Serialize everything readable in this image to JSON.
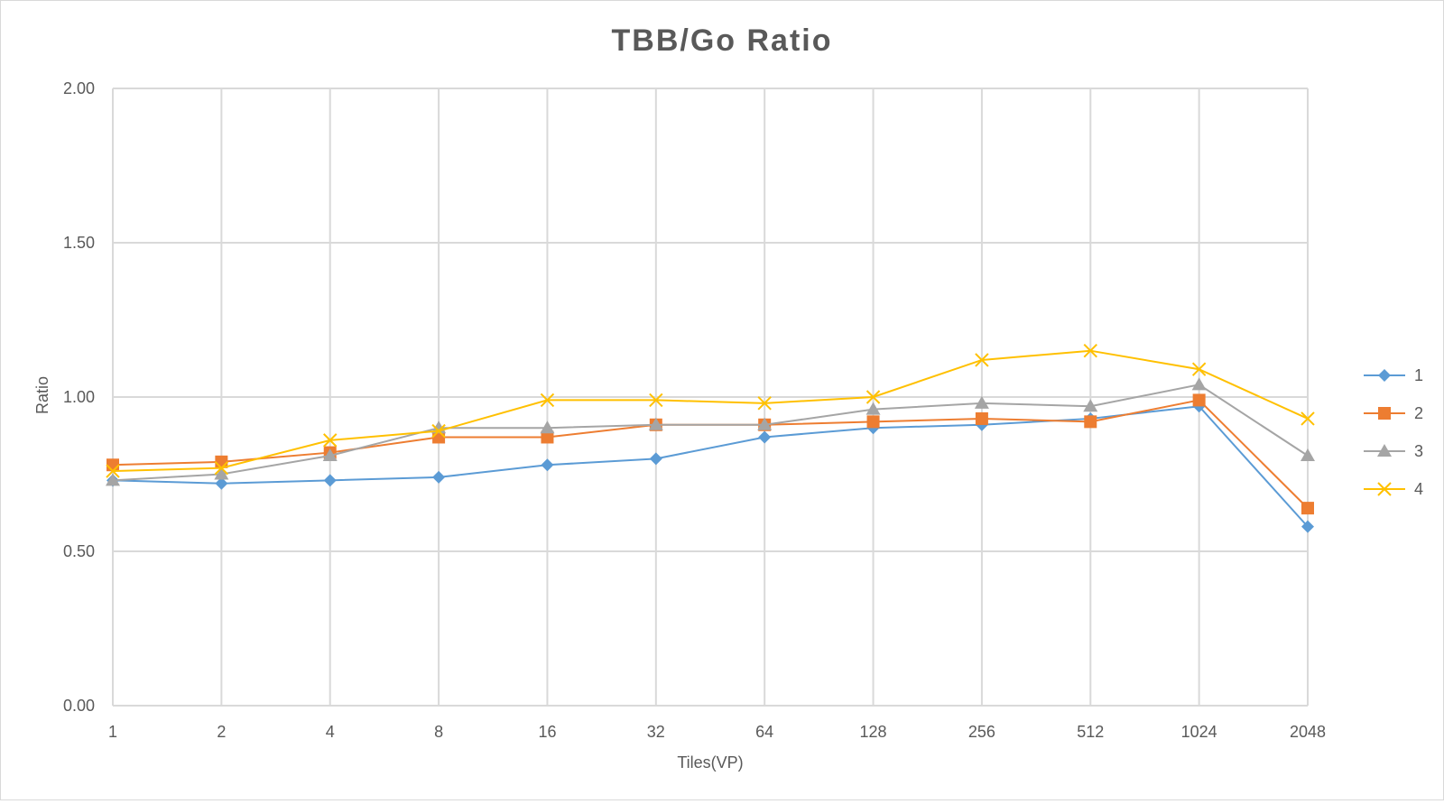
{
  "chart_data": {
    "type": "line",
    "title": "TBB/Go Ratio",
    "xlabel": "Tiles(VP)",
    "ylabel": "Ratio",
    "categories": [
      "1",
      "2",
      "4",
      "8",
      "16",
      "32",
      "64",
      "128",
      "256",
      "512",
      "1024",
      "2048"
    ],
    "ylim": [
      0,
      2
    ],
    "yticks": [
      "0.00",
      "0.50",
      "1.00",
      "1.50",
      "2.00"
    ],
    "grid": true,
    "legend_position": "right",
    "series": [
      {
        "name": "1",
        "color": "#5B9BD5",
        "marker": "diamond",
        "values": [
          0.73,
          0.72,
          0.73,
          0.74,
          0.78,
          0.8,
          0.87,
          0.9,
          0.91,
          0.93,
          0.97,
          0.58
        ]
      },
      {
        "name": "2",
        "color": "#ED7D31",
        "marker": "square",
        "values": [
          0.78,
          0.79,
          0.82,
          0.87,
          0.87,
          0.91,
          0.91,
          0.92,
          0.93,
          0.92,
          0.99,
          0.64
        ]
      },
      {
        "name": "3",
        "color": "#A5A5A5",
        "marker": "triangle",
        "values": [
          0.73,
          0.75,
          0.81,
          0.9,
          0.9,
          0.91,
          0.91,
          0.96,
          0.98,
          0.97,
          1.04,
          0.81
        ]
      },
      {
        "name": "4",
        "color": "#FFC000",
        "marker": "x",
        "values": [
          0.76,
          0.77,
          0.86,
          0.89,
          0.99,
          0.99,
          0.98,
          1.0,
          1.12,
          1.15,
          1.09,
          0.93
        ]
      }
    ]
  }
}
